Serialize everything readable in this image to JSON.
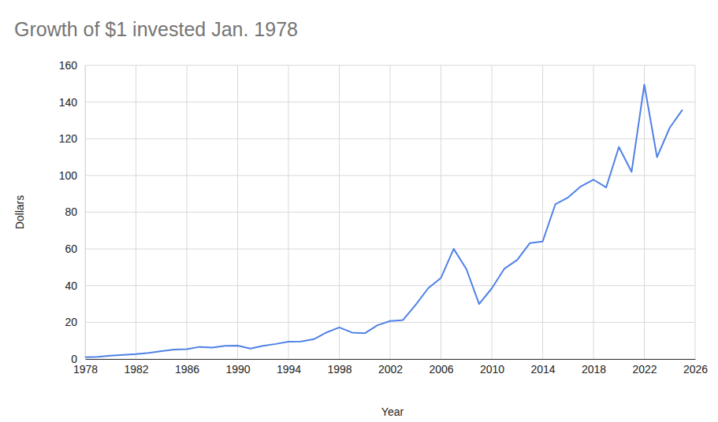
{
  "chart_data": {
    "type": "line",
    "title": "Growth of $1 invested Jan. 1978",
    "x_label": "Year",
    "y_label": "Dollars",
    "x": [
      1978,
      1979,
      1980,
      1981,
      1982,
      1983,
      1984,
      1985,
      1986,
      1987,
      1988,
      1989,
      1990,
      1991,
      1992,
      1993,
      1994,
      1995,
      1996,
      1997,
      1998,
      1999,
      2000,
      2001,
      2002,
      2003,
      2004,
      2005,
      2006,
      2007,
      2008,
      2009,
      2010,
      2011,
      2012,
      2013,
      2014,
      2015,
      2016,
      2017,
      2018,
      2019,
      2020,
      2021,
      2022,
      2023,
      2024,
      2025
    ],
    "values": [
      1,
      1.2,
      1.8,
      2.3,
      2.7,
      3.3,
      4.3,
      5.1,
      5.4,
      6.6,
      6.2,
      7.2,
      7.3,
      5.7,
      7.2,
      8.2,
      9.4,
      9.5,
      10.8,
      14.5,
      17.2,
      14.4,
      14,
      18.4,
      20.7,
      21.2,
      29.4,
      38.6,
      44.2,
      60,
      49,
      30,
      38.5,
      49.3,
      54,
      63.2,
      64,
      84.3,
      88,
      94,
      97.7,
      93.5,
      115.5,
      102,
      149.5,
      110,
      126,
      135.8
    ],
    "color": "#4f81e6",
    "xlim": [
      1978,
      2026
    ],
    "xticks": [
      1978,
      1982,
      1986,
      1990,
      1994,
      1998,
      2002,
      2006,
      2010,
      2014,
      2018,
      2022,
      2026
    ],
    "ylim": [
      0,
      160
    ],
    "yticks": [
      0,
      20,
      40,
      60,
      80,
      100,
      120,
      140,
      160
    ],
    "grid": true
  }
}
